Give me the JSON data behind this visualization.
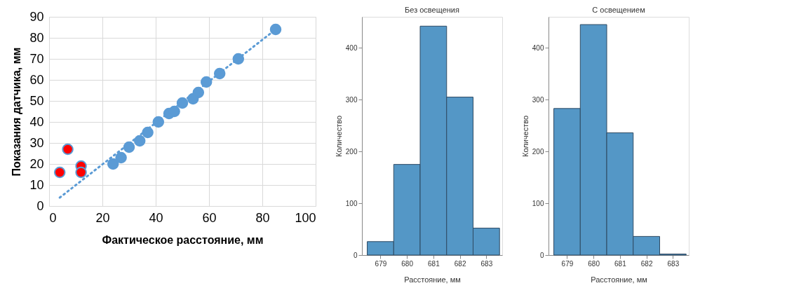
{
  "chart_data": [
    {
      "type": "scatter",
      "xlabel": "Фактическое расстояние, мм",
      "ylabel": "Показания датчика, мм",
      "xlim": [
        0,
        100
      ],
      "xticks": [
        0,
        20,
        40,
        60,
        80,
        100
      ],
      "ylim": [
        0,
        90
      ],
      "yticks": [
        0,
        10,
        20,
        30,
        40,
        50,
        60,
        70,
        80,
        90
      ],
      "grid": true,
      "legend": false,
      "marker": "circle",
      "series": [
        {
          "type": "line",
          "color": "#5b9bd5",
          "line_style": "dotted",
          "marker": "none",
          "x": [
            4,
            85
          ],
          "values": [
            4,
            84
          ]
        },
        {
          "color": "#5b9bd5",
          "x": [
            24,
            27,
            30,
            34,
            37,
            41,
            45,
            47,
            50,
            54,
            56,
            59,
            64,
            71,
            85
          ],
          "values": [
            20,
            23,
            28,
            31,
            35,
            40,
            44,
            45,
            49,
            51,
            54,
            59,
            63,
            70,
            84
          ]
        },
        {
          "color": "#ff0000",
          "x": [
            4,
            7,
            12,
            12
          ],
          "values": [
            16,
            27,
            19,
            16
          ]
        }
      ]
    },
    {
      "type": "histogram",
      "title": "Без освещения",
      "xlabel": "Расстояние, мм",
      "ylabel": "Количество",
      "bins": [
        678.5,
        679.5,
        680.5,
        681.5,
        682.5,
        683.5
      ],
      "values": [
        26,
        175,
        442,
        305,
        52
      ],
      "color": "#5497c6",
      "xlim": [
        678.3,
        683.6
      ],
      "xticks": [
        679,
        680,
        681,
        682,
        683
      ],
      "ylim": [
        0,
        460
      ],
      "yticks": [
        0,
        100,
        200,
        300,
        400
      ],
      "grid": false
    },
    {
      "type": "histogram",
      "title": "С освещением",
      "xlabel": "Расстояние, мм",
      "ylabel": "Количество",
      "bins": [
        678.5,
        679.5,
        680.5,
        681.5,
        682.5,
        683.5
      ],
      "values": [
        283,
        445,
        236,
        36,
        2
      ],
      "color": "#5497c6",
      "xlim": [
        678.3,
        683.6
      ],
      "xticks": [
        679,
        680,
        681,
        682,
        683
      ],
      "ylim": [
        0,
        460
      ],
      "yticks": [
        0,
        100,
        200,
        300,
        400
      ],
      "grid": false
    }
  ]
}
